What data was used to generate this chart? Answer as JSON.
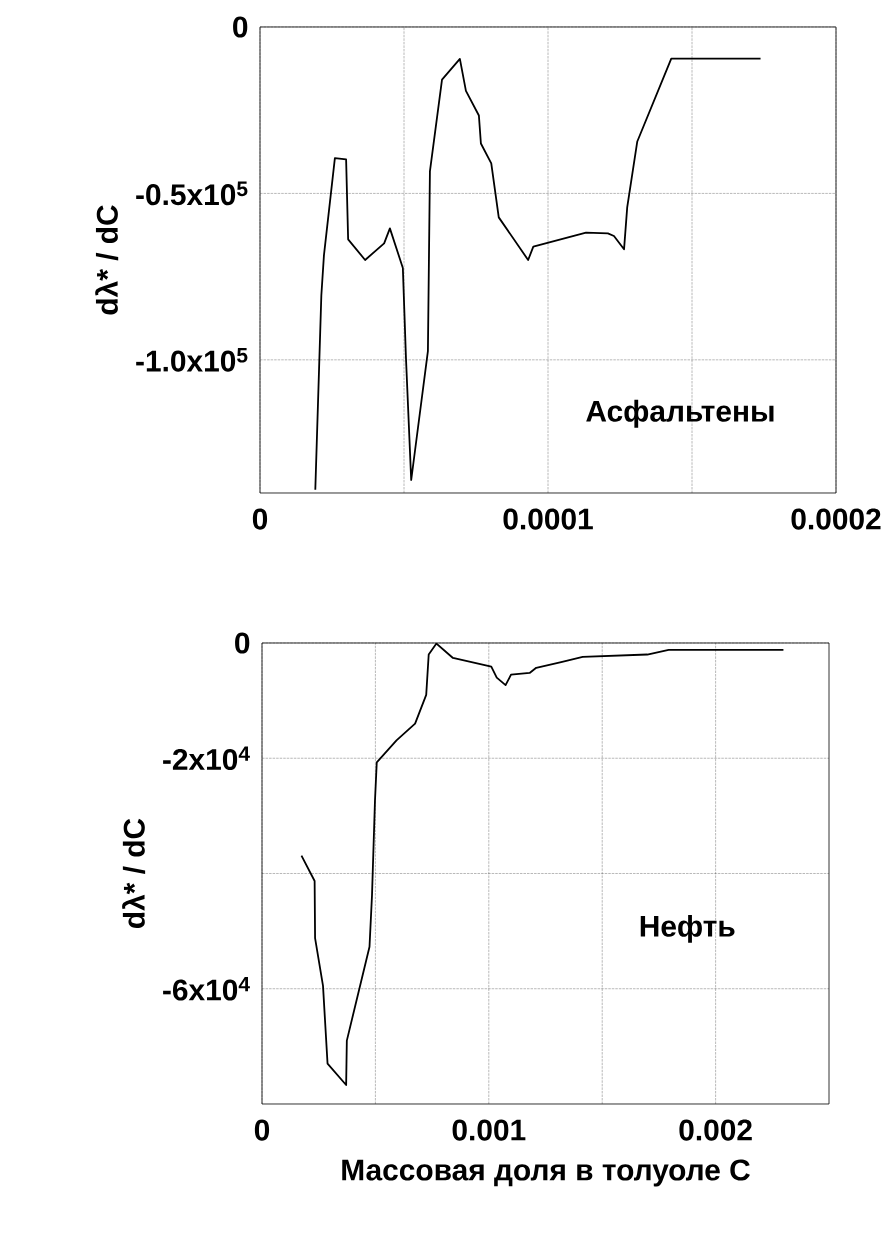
{
  "chart_data": [
    {
      "type": "line",
      "ylabel": "dλ* / dC",
      "color": "#000000",
      "grid": true,
      "xlim": [
        0,
        0.0002
      ],
      "xticks": [
        0,
        {
          "value": 5e-05,
          "label": null
        },
        0.0001,
        {
          "value": 0.00015,
          "label": null
        },
        0.0002
      ],
      "ylim": [
        -140000,
        0
      ],
      "yticks": [
        0,
        {
          "value": -50000,
          "label": "-0.5x10$^{5}$"
        },
        {
          "value": -100000,
          "label": "-1.0x10$^{5}$"
        }
      ],
      "annotations": [
        "Асфальтены"
      ],
      "x": [
        1.92e-05,
        2.01e-05,
        2.13e-05,
        2.22e-05,
        2.6e-05,
        2.99e-05,
        3.06e-05,
        3.65e-05,
        4.31e-05,
        4.51e-05,
        4.96e-05,
        5.07e-05,
        5.25e-05,
        5.83e-05,
        5.9e-05,
        6.32e-05,
        6.94e-05,
        7.15e-05,
        7.6e-05,
        7.67e-05,
        8.03e-05,
        8.29e-05,
        9.31e-05,
        9.49e-05,
        0.0001132,
        0.0001208,
        0.0001229,
        0.0001264,
        0.0001275,
        0.000131,
        0.0001428,
        0.0001738
      ],
      "values": [
        -139000,
        -114000,
        -80600,
        -68600,
        -39400,
        -39800,
        -63800,
        -70000,
        -65000,
        -60500,
        -72400,
        -99800,
        -136100,
        -97400,
        -43400,
        -15800,
        -9600,
        -19200,
        -26600,
        -35000,
        -41000,
        -57200,
        -70000,
        -66000,
        -61800,
        -62000,
        -62800,
        -66800,
        -54200,
        -34400,
        -9500,
        -9500
      ]
    },
    {
      "type": "line",
      "ylabel": "dλ* / dC",
      "xlabel": "Массовая доля в толуоле С",
      "color": "#000000",
      "grid": true,
      "xlim": [
        0,
        0.0025
      ],
      "xticks": [
        0,
        {
          "value": 0.0005,
          "label": null
        },
        0.001,
        {
          "value": 0.0015,
          "label": null
        },
        0.002
      ],
      "ylim": [
        -80000,
        0
      ],
      "yticks": [
        0,
        {
          "value": -20000,
          "label": "-2x10$^{4}$"
        },
        {
          "value": -40000,
          "label": null
        },
        {
          "value": -60000,
          "label": "-6x10$^{4}$"
        }
      ],
      "annotations": [
        "Нефть"
      ],
      "x": [
        0.000174,
        0.000232,
        0.000234,
        0.000269,
        0.000289,
        0.000371,
        0.000374,
        0.000474,
        0.000485,
        0.000498,
        0.000506,
        0.000593,
        0.000675,
        0.000724,
        0.000735,
        0.000769,
        0.000842,
        0.001011,
        0.001035,
        0.001074,
        0.001098,
        0.00118,
        0.001209,
        0.001319,
        0.001414,
        0.001699,
        0.001793,
        0.002299
      ],
      "values": [
        -36900,
        -41300,
        -51200,
        -59500,
        -73000,
        -76700,
        -69000,
        -52700,
        -43800,
        -27500,
        -20700,
        -16900,
        -14000,
        -9000,
        -2000,
        -100,
        -2600,
        -4100,
        -6000,
        -7300,
        -5500,
        -5200,
        -4300,
        -3300,
        -2400,
        -2000,
        -1200,
        -1200
      ]
    }
  ]
}
